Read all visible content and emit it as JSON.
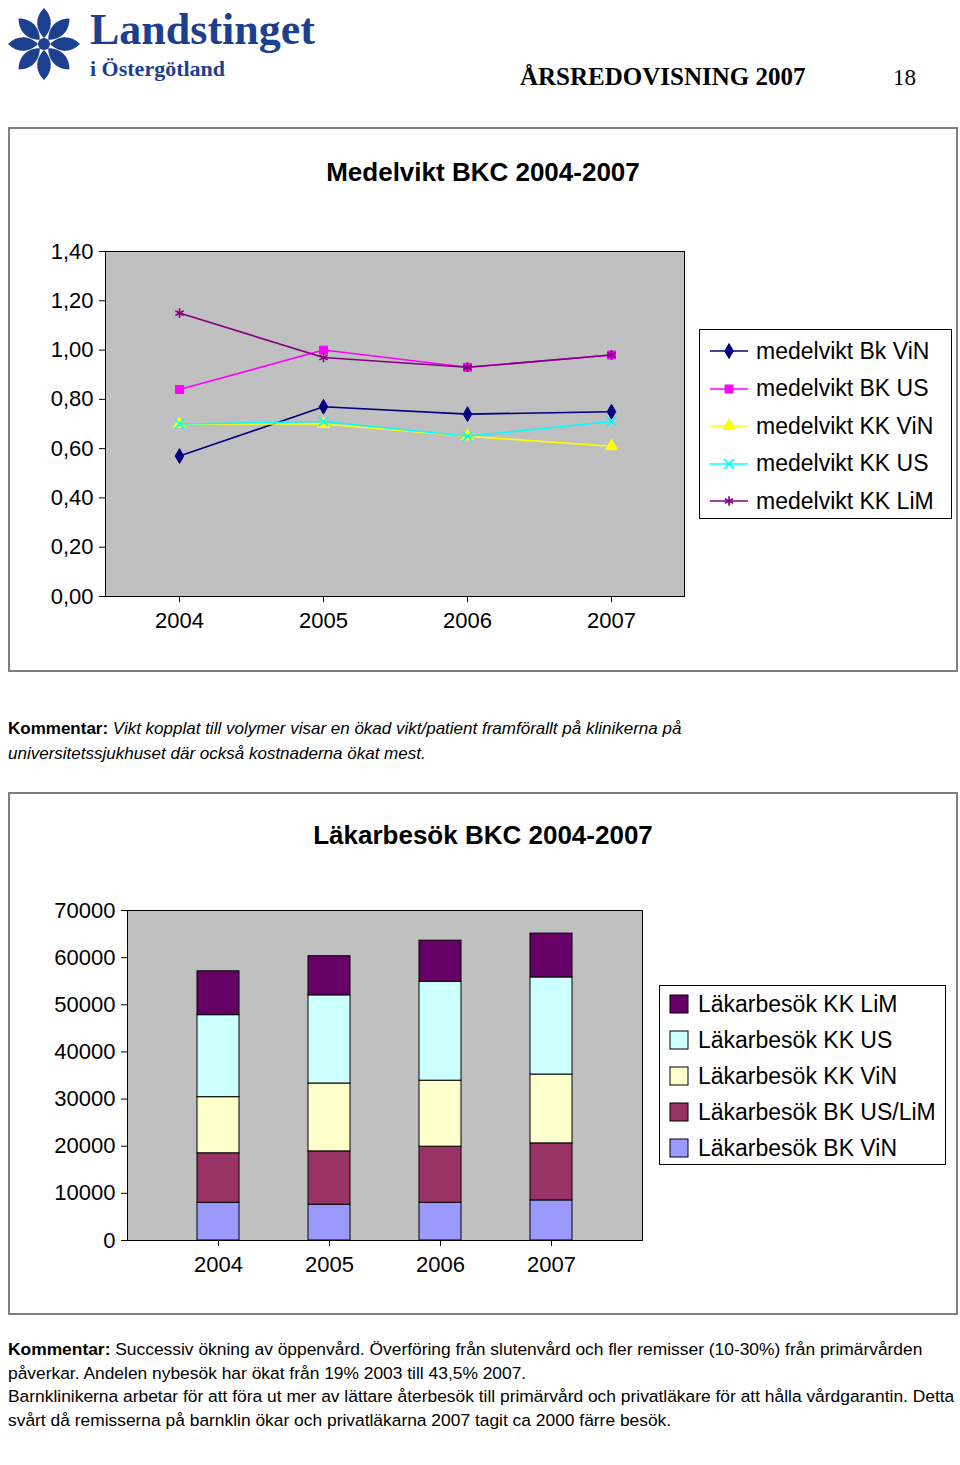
{
  "header": {
    "organization": "Landstinget",
    "organization_sub": "i Östergötland",
    "report": "ÅRSREDOVISNING 2007",
    "page": 18
  },
  "chart_data": [
    {
      "type": "line",
      "title": "Medelvikt BKC 2004-2007",
      "categories": [
        "2004",
        "2005",
        "2006",
        "2007"
      ],
      "series": [
        {
          "name": "medelvikt Bk ViN",
          "color": "#000080",
          "marker": "diamond",
          "values": [
            0.57,
            0.77,
            0.74,
            0.75
          ]
        },
        {
          "name": "medelvikt BK US",
          "color": "#ff00ff",
          "marker": "square",
          "values": [
            0.84,
            1.0,
            0.93,
            0.98
          ]
        },
        {
          "name": "medelvikt KK ViN",
          "color": "#ffff00",
          "marker": "triangle",
          "values": [
            0.7,
            0.7,
            0.65,
            0.61
          ]
        },
        {
          "name": "medelvikt KK US",
          "color": "#00ffff",
          "marker": "x",
          "values": [
            0.7,
            0.71,
            0.65,
            0.71
          ]
        },
        {
          "name": "medelvikt KK LiM",
          "color": "#800080",
          "marker": "asterisk",
          "values": [
            1.15,
            0.97,
            0.93,
            0.98
          ]
        }
      ],
      "ylim": [
        0,
        1.4
      ],
      "yticks": [
        {
          "value": 0,
          "label": "0,00"
        },
        {
          "value": 0.2,
          "label": "0,20"
        },
        {
          "value": 0.4,
          "label": "0,40"
        },
        {
          "value": 0.6,
          "label": "0,60"
        },
        {
          "value": 0.8,
          "label": "0,80"
        },
        {
          "value": 1.0,
          "label": "1,00"
        },
        {
          "value": 1.2,
          "label": "1,20"
        },
        {
          "value": 1.4,
          "label": "1,40"
        }
      ],
      "grid": false,
      "legend": "right"
    },
    {
      "type": "bar",
      "title": "Läkarbesök BKC 2004-2007",
      "stacked": true,
      "categories": [
        "2004",
        "2005",
        "2006",
        "2007"
      ],
      "series": [
        {
          "name": "Läkarbesök BK ViN",
          "color": "#9999ff",
          "values": [
            8000,
            7600,
            8000,
            8500
          ]
        },
        {
          "name": "Läkarbesök BK US/LiM",
          "color": "#993366",
          "values": [
            10500,
            11300,
            11900,
            12100
          ]
        },
        {
          "name": "Läkarbesök KK ViN",
          "color": "#ffffcc",
          "values": [
            11900,
            14400,
            14000,
            14600
          ]
        },
        {
          "name": "Läkarbesök KK US",
          "color": "#ccffff",
          "values": [
            17400,
            18700,
            21000,
            20600
          ]
        },
        {
          "name": "Läkarbesök KK LiM",
          "color": "#660066",
          "values": [
            9300,
            8300,
            8700,
            9300
          ]
        }
      ],
      "ylim": [
        0,
        70000
      ],
      "yticks": [
        0,
        10000,
        20000,
        30000,
        40000,
        50000,
        60000,
        70000
      ],
      "grid": false,
      "legend": "right"
    }
  ],
  "comments": [
    {
      "label": "Kommentar:",
      "paragraphs": [
        "Vikt kopplat till volymer visar en ökad vikt/patient framförallt på klinikerna på universitetssjukhuset där också kostnaderna ökat mest."
      ]
    },
    {
      "label": "Kommentar:",
      "paragraphs": [
        "Successiv ökning av öppenvård. Överföring från slutenvård och fler remisser (10-30%) från primärvården påverkar. Andelen nybesök har ökat från 19% 2003 till 43,5% 2007.",
        "Barnklinikerna arbetar för att föra ut mer av lättare återbesök till primärvård och privatläkare för att hålla vårdgarantin. Detta svårt då remisserna på barnklin ökar och privatläkarna 2007 tagit ca 2000 färre besök."
      ]
    }
  ]
}
